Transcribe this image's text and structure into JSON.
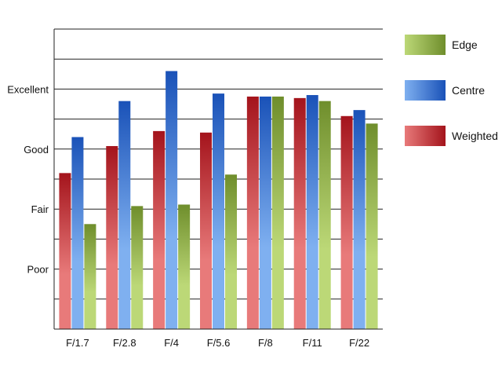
{
  "chart_data": {
    "type": "bar",
    "title": "",
    "xlabel": "",
    "ylabel": "",
    "categories": [
      "F/1.7",
      "F/2.8",
      "F/4",
      "F/5.6",
      "F/8",
      "F/11",
      "F/22"
    ],
    "ylim": [
      0,
      10
    ],
    "yticks": [
      {
        "value": 2,
        "label": "Poor"
      },
      {
        "value": 4,
        "label": "Fair"
      },
      {
        "value": 6,
        "label": "Good"
      },
      {
        "value": 8,
        "label": "Excellent"
      }
    ],
    "gridlines": [
      1,
      2,
      3,
      4,
      5,
      6,
      7,
      8,
      9,
      10
    ],
    "grid": true,
    "legend_position": "right",
    "series": [
      {
        "name": "Weighted",
        "values": [
          5.2,
          6.1,
          6.6,
          6.55,
          7.75,
          7.7,
          7.1
        ],
        "color_light": "#e87a7a",
        "color_dark": "#a4141c"
      },
      {
        "name": "Centre",
        "values": [
          6.4,
          7.6,
          8.6,
          7.85,
          7.75,
          7.8,
          7.3
        ],
        "color_light": "#7fb0f0",
        "color_dark": "#1a52b8"
      },
      {
        "name": "Edge",
        "values": [
          3.5,
          4.1,
          4.15,
          5.15,
          7.75,
          7.6,
          6.85
        ],
        "color_light": "#bcd877",
        "color_dark": "#6f8e2c"
      }
    ],
    "legend_order": [
      "Edge",
      "Centre",
      "Weighted"
    ]
  }
}
